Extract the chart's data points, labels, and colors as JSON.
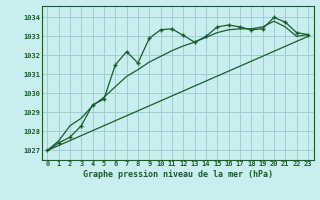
{
  "title": "Graphe pression niveau de la mer (hPa)",
  "bg_color": "#c8eef0",
  "grid_color": "#a0cdd0",
  "line_color": "#1a5c2a",
  "xlim": [
    -0.5,
    23.5
  ],
  "ylim": [
    1026.5,
    1034.6
  ],
  "yticks": [
    1027,
    1028,
    1029,
    1030,
    1031,
    1032,
    1033,
    1034
  ],
  "xticks": [
    0,
    1,
    2,
    3,
    4,
    5,
    6,
    7,
    8,
    9,
    10,
    11,
    12,
    13,
    14,
    15,
    16,
    17,
    18,
    19,
    20,
    21,
    22,
    23
  ],
  "series1_x": [
    0,
    1,
    2,
    3,
    4,
    5,
    6,
    7,
    8,
    9,
    10,
    11,
    12,
    13,
    14,
    15,
    16,
    17,
    18,
    19,
    20,
    21,
    22,
    23
  ],
  "series1_y": [
    1027.0,
    1027.4,
    1027.7,
    1028.3,
    1029.4,
    1029.7,
    1031.5,
    1032.2,
    1031.6,
    1032.9,
    1033.35,
    1033.4,
    1033.05,
    1032.7,
    1033.0,
    1033.5,
    1033.6,
    1033.5,
    1033.35,
    1033.4,
    1034.0,
    1033.75,
    1033.2,
    1033.1
  ],
  "series2_x": [
    0,
    1,
    2,
    3,
    4,
    5,
    6,
    7,
    8,
    9,
    10,
    11,
    12,
    13,
    14,
    15,
    16,
    17,
    18,
    19,
    20,
    21,
    22,
    23
  ],
  "series2_y": [
    1027.0,
    1027.5,
    1028.3,
    1028.7,
    1029.35,
    1029.8,
    1030.35,
    1030.9,
    1031.25,
    1031.65,
    1031.95,
    1032.25,
    1032.5,
    1032.7,
    1032.95,
    1033.2,
    1033.35,
    1033.4,
    1033.4,
    1033.5,
    1033.8,
    1033.5,
    1033.0,
    1033.1
  ],
  "series3_x": [
    0,
    23
  ],
  "series3_y": [
    1027.0,
    1033.0
  ]
}
